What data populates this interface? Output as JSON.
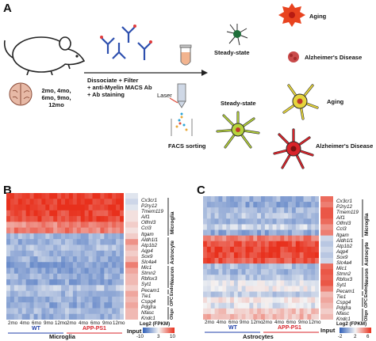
{
  "panels": {
    "a": "A",
    "b": "B",
    "c": "C"
  },
  "schematic": {
    "ages": [
      "2mo, 4mo,",
      "6mo, 9mo,",
      "12mo"
    ],
    "steps": [
      "Dissociate + Filter",
      "+ anti-Myelin MACS Ab",
      "+ Ab staining"
    ],
    "laser": "Laser",
    "facs": "FACS sorting",
    "states_top": {
      "steady": "Steady-state",
      "aging": "Aging",
      "ad": "Alzheimer's Disease"
    },
    "states_bottom": {
      "steady": "Steady-state",
      "aging": "Aging",
      "ad": "Alzheimer's Disease"
    }
  },
  "heatmap_b": {
    "genes": [
      "Cx3cr1",
      "P2ry12",
      "Tmem119",
      "Aif1",
      "Olfml3",
      "Ccl3",
      "Itgam",
      "Aldh1l1",
      "Atp1b2",
      "Aqp4",
      "Sox9",
      "Slc4a4",
      "Mic1",
      "Stmn2",
      "Rbfox3",
      "Syt1",
      "Pecam1",
      "Tie1",
      "Cspg4",
      "Pdgfra",
      "Nfasc",
      "Kndc1"
    ],
    "groups": [
      "Microglia",
      "Astrocyte",
      "Neuron",
      "Endo",
      "OPC",
      "Oligo"
    ],
    "ticks": [
      "2mo",
      "4mo",
      "6mo",
      "9mo",
      "12mo",
      "2mo",
      "4mo",
      "6mo",
      "9mo",
      "12mo"
    ],
    "wt": "WT",
    "app": "APP-PS1",
    "input": "Input",
    "xlabel": "Microglia",
    "legend_title": "Log2 (FPKM)",
    "legend_ticks": [
      "-10",
      "3",
      "10"
    ]
  },
  "heatmap_c": {
    "genes": [
      "Cx3cr1",
      "P2ry12",
      "Tmem119",
      "Aif1",
      "Olfml3",
      "Ccl3",
      "Itgam",
      "Aldh1l1",
      "Atp1b2",
      "Aqp4",
      "Sox9",
      "Slc4a4",
      "Mic1",
      "Stmn2",
      "Rbfox3",
      "Syt1",
      "Pecam1",
      "Tie1",
      "Cspg4",
      "Pdgfra",
      "Nfasc",
      "Kndc1"
    ],
    "groups": [
      "Microglia",
      "Astrocyte",
      "Neuron",
      "Endo",
      "OPC",
      "Oligo"
    ],
    "ticks": [
      "2mo",
      "4mo",
      "6mo",
      "9mo",
      "12mo",
      "2mo",
      "4mo",
      "6mo",
      "9mo",
      "12mo"
    ],
    "wt": "WT",
    "app": "APP-PS1",
    "input": "Input",
    "xlabel": "Astrocytes",
    "legend_title": "Log2 (FPKM)",
    "legend_ticks": [
      "-2",
      "2",
      "6"
    ]
  },
  "colors": {
    "red": "#e8301c",
    "blue": "#2f5fb8",
    "mid": "#f4f4f4",
    "wt": "#1f3fa8",
    "app": "#d8232a"
  }
}
